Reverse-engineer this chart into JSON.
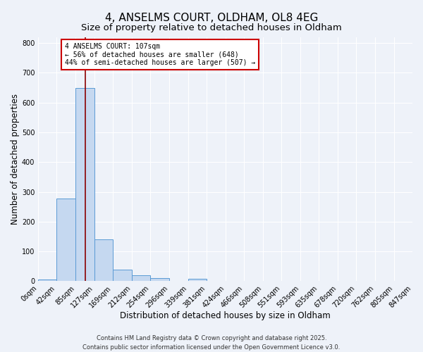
{
  "title": "4, ANSELMS COURT, OLDHAM, OL8 4EG",
  "subtitle": "Size of property relative to detached houses in Oldham",
  "xlabel": "Distribution of detached houses by size in Oldham",
  "ylabel": "Number of detached properties",
  "bar_values": [
    5,
    278,
    648,
    140,
    38,
    20,
    10,
    0,
    8,
    0,
    0,
    0,
    0,
    0,
    0,
    0,
    0,
    0,
    2,
    0
  ],
  "bin_labels": [
    "0sqm",
    "42sqm",
    "85sqm",
    "127sqm",
    "169sqm",
    "212sqm",
    "254sqm",
    "296sqm",
    "339sqm",
    "381sqm",
    "424sqm",
    "466sqm",
    "508sqm",
    "551sqm",
    "593sqm",
    "635sqm",
    "678sqm",
    "720sqm",
    "762sqm",
    "805sqm",
    "847sqm"
  ],
  "bar_color": "#c5d8f0",
  "bar_edge_color": "#5b9bd5",
  "property_line_x": 107,
  "property_line_color": "#8b0000",
  "annotation_line1": "4 ANSELMS COURT: 107sqm",
  "annotation_line2": "← 56% of detached houses are smaller (648)",
  "annotation_line3": "44% of semi-detached houses are larger (507) →",
  "annotation_box_color": "#ffffff",
  "annotation_box_edge": "#cc0000",
  "ylim": [
    0,
    820
  ],
  "yticks": [
    0,
    100,
    200,
    300,
    400,
    500,
    600,
    700,
    800
  ],
  "footer_line1": "Contains HM Land Registry data © Crown copyright and database right 2025.",
  "footer_line2": "Contains public sector information licensed under the Open Government Licence v3.0.",
  "n_bins": 20,
  "bar_lefts": [
    0,
    42,
    85,
    127,
    169,
    212,
    254,
    296,
    339,
    381,
    424,
    466,
    508,
    551,
    593,
    635,
    678,
    720,
    762,
    805
  ],
  "bar_rights": [
    42,
    85,
    127,
    169,
    212,
    254,
    296,
    339,
    381,
    424,
    466,
    508,
    551,
    593,
    635,
    678,
    720,
    762,
    805,
    847
  ],
  "background_color": "#eef2f9",
  "grid_color": "#ffffff",
  "title_fontsize": 11,
  "subtitle_fontsize": 9.5,
  "axis_label_fontsize": 8.5,
  "tick_fontsize": 7,
  "annotation_fontsize": 7,
  "footer_fontsize": 6
}
